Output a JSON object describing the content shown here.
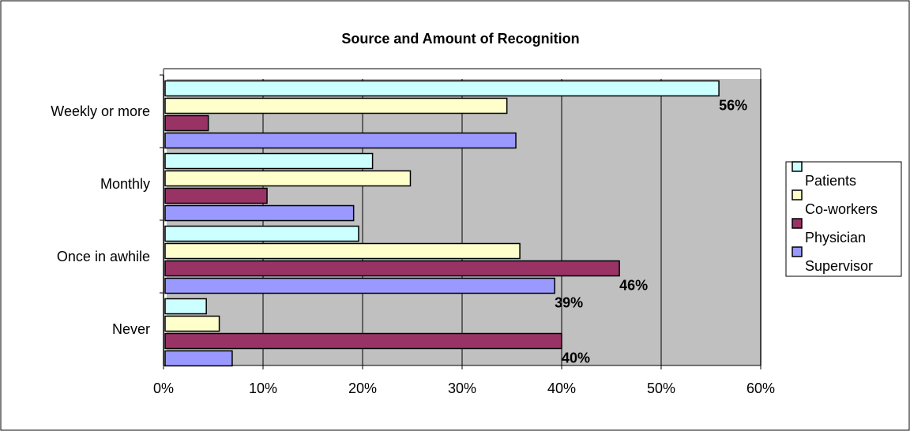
{
  "chart_data": {
    "type": "bar",
    "orientation": "horizontal",
    "title": "Source and Amount of Recognition",
    "categories": [
      "Weekly or more",
      "Monthly",
      "Once in awhile",
      "Never"
    ],
    "series": [
      {
        "name": "Patients",
        "color": "#ccffff",
        "values": [
          0.558,
          0.21,
          0.196,
          0.043
        ]
      },
      {
        "name": "Co-workers",
        "color": "#ffffcc",
        "values": [
          0.345,
          0.248,
          0.358,
          0.056
        ]
      },
      {
        "name": "Physician",
        "color": "#993366",
        "values": [
          0.045,
          0.104,
          0.458,
          0.4
        ]
      },
      {
        "name": "Supervisor",
        "color": "#9999ff",
        "values": [
          0.354,
          0.191,
          0.393,
          0.069
        ]
      }
    ],
    "xlim": [
      0,
      0.6
    ],
    "x_ticks": [
      "0%",
      "10%",
      "20%",
      "30%",
      "40%",
      "50%",
      "60%"
    ],
    "data_labels": [
      {
        "series": "Patients",
        "category": "Weekly or more",
        "text": "56%"
      },
      {
        "series": "Physician",
        "category": "Once in awhile",
        "text": "46%"
      },
      {
        "series": "Supervisor",
        "category": "Once in awhile",
        "text": "39%"
      },
      {
        "series": "Physician",
        "category": "Never",
        "text": "40%"
      }
    ],
    "grid": "vertical",
    "plot_background": "#c0c0c0",
    "legend_position": "right"
  }
}
